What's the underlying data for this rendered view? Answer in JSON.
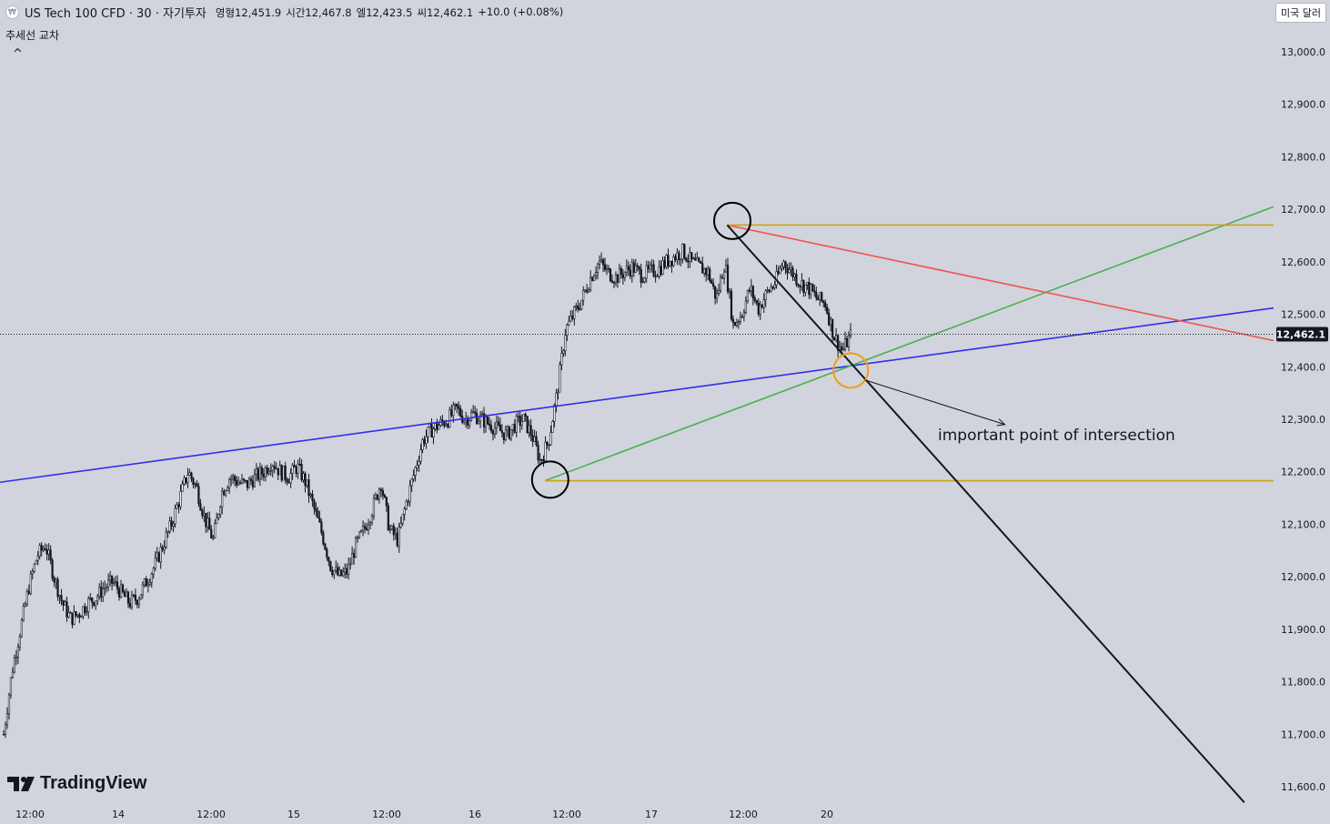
{
  "header": {
    "symbol_title": "US Tech 100 CFD · 30 · 자기투자",
    "ohlc": [
      {
        "key": "영",
        "value": "형12,451.9"
      },
      {
        "key": "시간",
        "value": "12,467.8"
      },
      {
        "key": "엘",
        "value": "12,423.5"
      },
      {
        "key": "씨",
        "value": "12,462.1"
      },
      {
        "key": "",
        "value": "+10.0 (+0.08%)"
      }
    ],
    "indicator_label": "추세선 교차",
    "collapse_glyph": "^",
    "currency_button": "미국 달러"
  },
  "logo_text": "TradingView",
  "annotation": "important point of intersection",
  "colors": {
    "background": "#d1d4dc",
    "candle": "#131722",
    "blue_trendline": "#2f2fe6",
    "green_trendline": "#4caf50",
    "red_trendline": "#f05350",
    "yellow_level": "#c8a415",
    "black_trendline": "#131722",
    "orange_circle": "#f39c12"
  },
  "chart_data": {
    "type": "candlestick",
    "title": "US Tech 100 CFD · 30",
    "y_axis": {
      "ylim": [
        11570,
        13100
      ],
      "ticks": [
        "13,000.0",
        "12,900.0",
        "12,800.0",
        "12,700.0",
        "12,600.0",
        "12,500.0",
        "12,400.0",
        "12,300.0",
        "12,200.0",
        "12,100.0",
        "12,000.0",
        "11,900.0",
        "11,800.0",
        "11,700.0",
        "11,600.0"
      ],
      "tick_values": [
        13000,
        12900,
        12800,
        12700,
        12600,
        12500,
        12400,
        12300,
        12200,
        12100,
        12000,
        11900,
        11800,
        11700,
        11600
      ]
    },
    "x_axis": {
      "ticks": [
        "12:00",
        "14",
        "12:00",
        "15",
        "12:00",
        "16",
        "12:00",
        "17",
        "12:00",
        "20"
      ]
    },
    "last_price": {
      "value": 12462.1,
      "label": "12,462.1"
    },
    "price_path": [
      11700,
      11820,
      11900,
      11980,
      12040,
      12060,
      12000,
      11950,
      11920,
      11930,
      11950,
      11960,
      11980,
      11990,
      11970,
      11950,
      11960,
      11990,
      12020,
      12060,
      12100,
      12150,
      12200,
      12170,
      12110,
      12070,
      12160,
      12190,
      12180,
      12175,
      12190,
      12200,
      12220,
      12200,
      12190,
      12210,
      12180,
      12130,
      12080,
      12020,
      12000,
      12010,
      12060,
      12090,
      12130,
      12180,
      12090,
      12070,
      12140,
      12200,
      12260,
      12280,
      12290,
      12300,
      12320,
      12300,
      12310,
      12300,
      12290,
      12280,
      12270,
      12290,
      12300,
      12270,
      12220,
      12260,
      12350,
      12470,
      12500,
      12530,
      12570,
      12600,
      12580,
      12570,
      12580,
      12590,
      12575,
      12580,
      12585,
      12600,
      12610,
      12620,
      12600,
      12590,
      12580,
      12530,
      12600,
      12480,
      12500,
      12550,
      12510,
      12540,
      12560,
      12600,
      12580,
      12560,
      12550,
      12530,
      12520,
      12460,
      12430,
      12460
    ],
    "lines": [
      {
        "name": "blue",
        "from": {
          "t": 0.0,
          "v": 12180
        },
        "to": {
          "t": 1.0,
          "v": 12512
        }
      },
      {
        "name": "green",
        "from": {
          "t": 0.428,
          "v": 12183
        },
        "to": {
          "t": 1.0,
          "v": 12705
        }
      },
      {
        "name": "red",
        "from": {
          "t": 0.571,
          "v": 12670
        },
        "to": {
          "t": 1.0,
          "v": 12450
        }
      },
      {
        "name": "yellow-top",
        "from": {
          "t": 0.571,
          "v": 12670
        },
        "to": {
          "t": 1.0,
          "v": 12670
        }
      },
      {
        "name": "yellow-bottom",
        "from": {
          "t": 0.428,
          "v": 12183
        },
        "to": {
          "t": 1.0,
          "v": 12183
        }
      },
      {
        "name": "black",
        "from": {
          "t": 0.571,
          "v": 12670
        },
        "to": {
          "t": 0.977,
          "v": 11570
        }
      }
    ],
    "marks": [
      {
        "type": "circle",
        "color": "black",
        "t": 0.432,
        "v": 12185
      },
      {
        "type": "circle",
        "color": "black",
        "t": 0.575,
        "v": 12678
      },
      {
        "type": "circle",
        "color": "orange",
        "t": 0.668,
        "v": 12393
      }
    ],
    "arrow": {
      "from": {
        "t": 0.679,
        "v": 12375
      },
      "to": {
        "t": 0.789,
        "v": 12290
      }
    }
  }
}
